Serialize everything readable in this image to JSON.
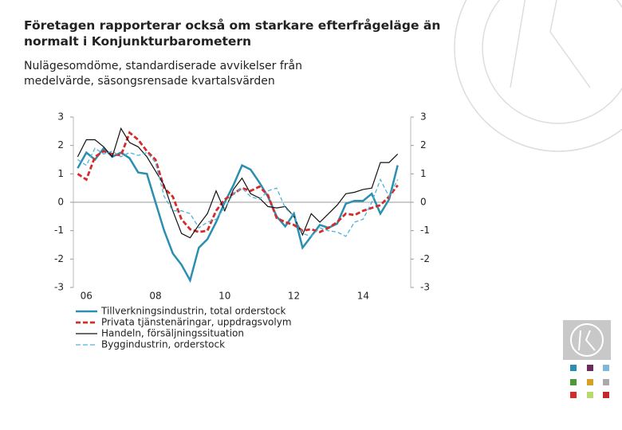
{
  "chart_data": {
    "type": "line",
    "title": "Företagen rapporterar också om starkare efterfrågeläge än normalt i Konjunkturbarometern",
    "subtitle": "Nulägesomdöme, standardiserade avvikelser från medelvärde, säsongsrensade kvartalsvärden",
    "categories": [
      null,
      "06",
      null,
      null,
      null,
      null,
      null,
      null,
      null,
      "08",
      null,
      null,
      null,
      null,
      null,
      null,
      null,
      "10",
      null,
      null,
      null,
      null,
      null,
      null,
      null,
      "12",
      null,
      null,
      null,
      null,
      null,
      null,
      null,
      "14",
      null,
      null,
      null,
      null
    ],
    "series": [
      {
        "name": "Tillverkningsindustrin, total orderstock",
        "color": "#2a8fb0",
        "dash": "solid",
        "values": [
          1.2,
          1.75,
          1.5,
          1.9,
          1.6,
          1.75,
          1.55,
          1.05,
          1.0,
          0.0,
          -1.0,
          -1.8,
          -2.2,
          -2.75,
          -1.6,
          -1.3,
          -0.7,
          0.0,
          0.6,
          1.3,
          1.15,
          0.7,
          0.2,
          -0.5,
          -0.85,
          -0.4,
          -1.6,
          -1.2,
          -0.8,
          -0.9,
          -0.75,
          -0.05,
          0.05,
          0.05,
          0.3,
          -0.4,
          0.1,
          1.3
        ]
      },
      {
        "name": "Privata tjänstenäringar, uppdragsvolym",
        "color": "#d62b2b",
        "dash": "dashed",
        "values": [
          1.0,
          0.8,
          1.6,
          1.8,
          1.7,
          1.65,
          2.45,
          2.2,
          1.8,
          1.5,
          0.5,
          0.2,
          -0.6,
          -0.95,
          -1.05,
          -1.0,
          -0.3,
          0.1,
          0.3,
          0.5,
          0.4,
          0.55,
          0.25,
          -0.55,
          -0.7,
          -0.8,
          -1.0,
          -0.95,
          -1.05,
          -0.9,
          -0.7,
          -0.4,
          -0.45,
          -0.3,
          -0.2,
          -0.1,
          0.2,
          0.6
        ]
      },
      {
        "name": "Handeln, försäljningssituation",
        "color": "#111111",
        "dash": "solid",
        "values": [
          1.6,
          2.2,
          2.2,
          1.95,
          1.6,
          2.6,
          2.1,
          1.95,
          1.6,
          1.1,
          0.6,
          -0.3,
          -1.1,
          -1.25,
          -0.8,
          -0.4,
          0.4,
          -0.3,
          0.45,
          0.85,
          0.3,
          0.15,
          -0.15,
          -0.2,
          -0.15,
          -0.5,
          -1.15,
          -0.4,
          -0.7,
          -0.4,
          -0.1,
          0.3,
          0.35,
          0.45,
          0.5,
          1.4,
          1.4,
          1.7
        ]
      },
      {
        "name": "Byggindustrin, orderstock",
        "color": "#4fb3d9",
        "dash": "dashed",
        "values": [
          1.5,
          1.3,
          1.9,
          1.7,
          1.8,
          1.6,
          1.75,
          1.65,
          1.75,
          1.4,
          0.2,
          -0.3,
          -0.3,
          -0.4,
          -0.9,
          -0.7,
          -0.6,
          -0.2,
          0.3,
          0.5,
          0.2,
          0.1,
          0.4,
          0.5,
          -0.2,
          -0.5,
          -1.1,
          -1.2,
          -0.9,
          -1.0,
          -1.05,
          -1.2,
          -0.7,
          -0.6,
          0.0,
          0.8,
          0.2,
          0.8
        ]
      }
    ],
    "ylim": [
      -3,
      3
    ],
    "yticks": [
      -3,
      -2,
      -1,
      0,
      1,
      2,
      3
    ],
    "y2lim": [
      -3,
      3
    ],
    "y2ticks": [
      -3,
      -2,
      -1,
      0,
      1,
      2,
      3
    ],
    "grid": false,
    "legend": "bottom"
  }
}
